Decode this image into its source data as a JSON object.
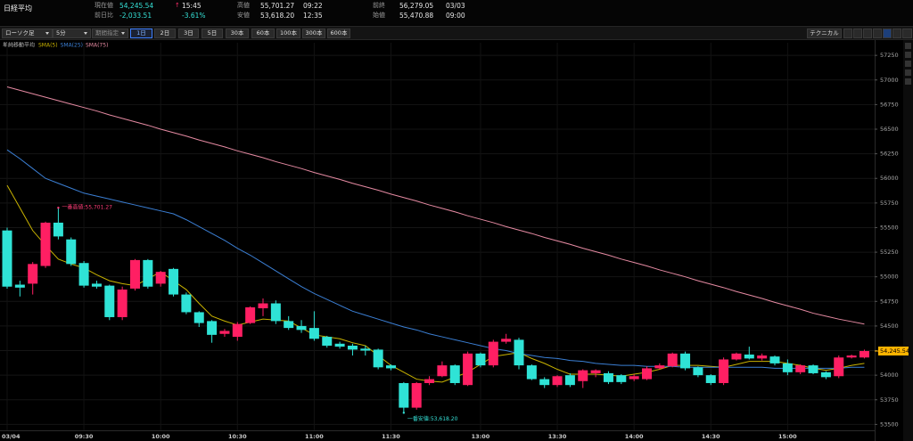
{
  "header": {
    "title": "日経平均",
    "quotes": [
      {
        "label": "現在値",
        "value": "54,245.54",
        "mark": "↑",
        "time": "15:45"
      },
      {
        "label": "前日比",
        "value": "-2,033.51",
        "time": "-3.61%"
      },
      {
        "label": "高値",
        "value": "55,701.27",
        "time": "09:22"
      },
      {
        "label": "安値",
        "value": "53,618.20",
        "time": "12:35"
      },
      {
        "label": "前終",
        "value": "56,279.05",
        "time": "03/03"
      },
      {
        "label": "始値",
        "value": "55,470.88",
        "time": "09:00"
      }
    ]
  },
  "toolbar": {
    "selects": [
      "ローソク足",
      "5分",
      "期間指定"
    ],
    "ranges": [
      "1日",
      "2日",
      "3日",
      "5日",
      "30本",
      "60本",
      "100本",
      "300本",
      "600本"
    ],
    "technical": "テクニカル"
  },
  "chart_data": {
    "type": "candlestick",
    "legend_title": "単純移動平均",
    "categories": [
      "03/04",
      null,
      null,
      null,
      null,
      null,
      "09:30",
      null,
      null,
      null,
      null,
      null,
      "10:00",
      null,
      null,
      null,
      null,
      null,
      "10:30",
      null,
      null,
      null,
      null,
      null,
      "11:00",
      null,
      null,
      null,
      null,
      null,
      "11:30",
      null,
      null,
      null,
      null,
      null,
      null,
      "13:00",
      null,
      null,
      null,
      null,
      null,
      "13:30",
      null,
      null,
      null,
      null,
      null,
      "14:00",
      null,
      null,
      null,
      null,
      null,
      "14:30",
      null,
      null,
      null,
      null,
      null,
      "15:00",
      null,
      null,
      null,
      null,
      null,
      null
    ],
    "up_color": "#ff1f63",
    "down_color": "#2fe3d6",
    "open": [
      55470.88,
      54920,
      54930,
      55110,
      55550,
      55380,
      55140,
      54930,
      54910,
      54590,
      54880,
      55170,
      54930,
      55080,
      54820,
      54640,
      54550,
      54420,
      54390,
      54530,
      54680,
      54730,
      54550,
      54500,
      54480,
      54390,
      54320,
      54300,
      54270,
      54260,
      54100,
      53920,
      53670,
      53920,
      53990,
      54100,
      53900,
      54220,
      54100,
      54340,
      54360,
      54100,
      53960,
      53900,
      54000,
      53940,
      54020,
      54020,
      54000,
      53960,
      53960,
      54070,
      54090,
      54220,
      54080,
      54000,
      53920,
      54160,
      54210,
      54170,
      54190,
      54120,
      54030,
      54100,
      54030,
      53990,
      54180,
      54180
    ],
    "high": [
      55500,
      54960,
      55150,
      55560,
      55701.27,
      55400,
      55160,
      54960,
      54920,
      54900,
      55180,
      55180,
      55060,
      55090,
      54840,
      54650,
      54560,
      54470,
      54540,
      54700,
      54780,
      54760,
      54600,
      54560,
      54650,
      54400,
      54340,
      54320,
      54300,
      54270,
      54110,
      53930,
      53930,
      53990,
      54140,
      54110,
      54240,
      54230,
      54360,
      54420,
      54380,
      54110,
      53980,
      54000,
      54020,
      54060,
      54060,
      54040,
      54010,
      54010,
      54090,
      54120,
      54230,
      54240,
      54090,
      54010,
      54180,
      54230,
      54290,
      54220,
      54200,
      54160,
      54110,
      54110,
      54040,
      54200,
      54210,
      54260
    ],
    "low": [
      54880,
      54800,
      54820,
      55090,
      55380,
      55110,
      54890,
      54880,
      54560,
      54560,
      54860,
      54880,
      54900,
      54800,
      54620,
      54490,
      54330,
      54390,
      54350,
      54520,
      54600,
      54520,
      54460,
      54430,
      54350,
      54280,
      54270,
      54200,
      54200,
      54060,
      54050,
      53618.2,
      53650,
      53900,
      53980,
      53900,
      53890,
      54080,
      54080,
      54320,
      54060,
      53950,
      53870,
      53880,
      53880,
      53870,
      53980,
      53910,
      53910,
      53940,
      53950,
      54060,
      54080,
      54050,
      53980,
      53900,
      53900,
      54150,
      54160,
      54150,
      54100,
      54000,
      54010,
      54010,
      53960,
      53970,
      54170,
      54170
    ],
    "close": [
      54900,
      54890,
      55130,
      55550,
      55410,
      55130,
      54910,
      54900,
      54590,
      54870,
      55170,
      54900,
      55050,
      54820,
      54640,
      54530,
      54410,
      54450,
      54520,
      54690,
      54730,
      54550,
      54480,
      54460,
      54370,
      54300,
      54290,
      54260,
      54250,
      54080,
      54070,
      53670,
      53920,
      53960,
      54100,
      53920,
      54220,
      54100,
      54340,
      54370,
      54100,
      53960,
      53900,
      53990,
      53900,
      54050,
      54050,
      53930,
      53930,
      53990,
      54070,
      54100,
      54220,
      54070,
      54000,
      53920,
      54160,
      54220,
      54170,
      54200,
      54120,
      54030,
      54100,
      54020,
      53980,
      54180,
      54200,
      54245.54
    ],
    "series": [
      {
        "name": "SMA(5)",
        "color": "#c9b300",
        "values": [
          55930,
          55700,
          55470,
          55320,
          55180,
          55130,
          55090,
          55020,
          54960,
          54930,
          54910,
          54980,
          55050,
          54960,
          54870,
          54730,
          54600,
          54550,
          54510,
          54540,
          54570,
          54560,
          54550,
          54480,
          54410,
          54390,
          54370,
          54330,
          54300,
          54200,
          54100,
          54030,
          53960,
          53940,
          53930,
          53980,
          54030,
          54110,
          54190,
          54210,
          54230,
          54170,
          54120,
          54060,
          54010,
          54010,
          54010,
          54000,
          53990,
          54010,
          54030,
          54060,
          54100,
          54100,
          54100,
          54090,
          54080,
          54110,
          54140,
          54140,
          54140,
          54120,
          54100,
          54070,
          54050,
          54070,
          54100,
          54120
        ]
      },
      {
        "name": "SMA(25)",
        "color": "#3b7fd4",
        "values": [
          56290,
          56200,
          56100,
          56000,
          55950,
          55900,
          55850,
          55820,
          55790,
          55760,
          55730,
          55700,
          55670,
          55640,
          55580,
          55510,
          55440,
          55370,
          55290,
          55220,
          55140,
          55060,
          54980,
          54900,
          54830,
          54770,
          54710,
          54650,
          54610,
          54570,
          54530,
          54490,
          54460,
          54420,
          54390,
          54360,
          54330,
          54300,
          54270,
          54250,
          54220,
          54200,
          54180,
          54170,
          54150,
          54140,
          54120,
          54110,
          54100,
          54100,
          54090,
          54090,
          54090,
          54080,
          54080,
          54080,
          54080,
          54080,
          54080,
          54080,
          54070,
          54070,
          54070,
          54070,
          54070,
          54070,
          54080,
          54080
        ]
      },
      {
        "name": "SMA(75)",
        "color": "#e58aa2",
        "values": [
          56930,
          56895,
          56860,
          56825,
          56790,
          56755,
          56720,
          56685,
          56645,
          56610,
          56575,
          56540,
          56500,
          56465,
          56430,
          56390,
          56355,
          56320,
          56280,
          56245,
          56210,
          56170,
          56135,
          56100,
          56060,
          56025,
          55990,
          55950,
          55915,
          55880,
          55840,
          55805,
          55770,
          55730,
          55695,
          55660,
          55620,
          55585,
          55550,
          55510,
          55475,
          55440,
          55400,
          55365,
          55330,
          55290,
          55255,
          55220,
          55180,
          55145,
          55110,
          55070,
          55035,
          55000,
          54960,
          54925,
          54890,
          54850,
          54815,
          54780,
          54740,
          54705,
          54670,
          54630,
          54600,
          54570,
          54545,
          54520
        ]
      }
    ],
    "annotations": [
      {
        "text": "一番高値:55,701.27",
        "value": 55701.27,
        "color": "#ff3d78"
      },
      {
        "text": "一番安値:53,618.20",
        "value": 53618.2,
        "color": "#35e0d6"
      }
    ],
    "last_price": {
      "value": 54245.54,
      "label": "54,245.54"
    },
    "ylim": [
      53440,
      57360
    ],
    "yticks": [
      53500,
      53750,
      54000,
      54250,
      54500,
      54750,
      55000,
      55250,
      55500,
      55750,
      56000,
      56250,
      56500,
      56750,
      57000,
      57250
    ],
    "grid": true
  }
}
